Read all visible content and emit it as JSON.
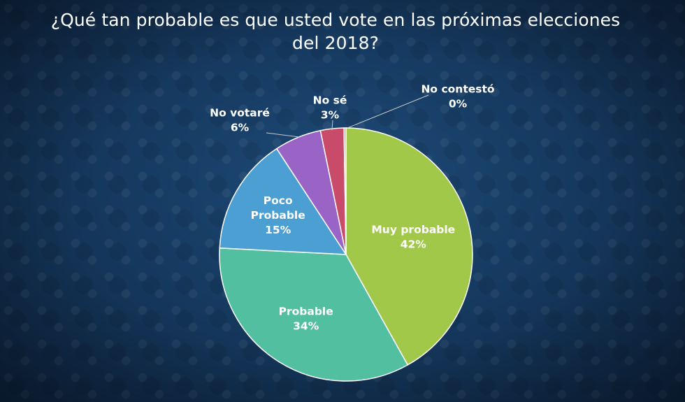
{
  "title_lines": [
    "¿Qué tan probable es que usted vote en las próximas elecciones",
    "del 2018?"
  ],
  "chart_data": {
    "type": "pie",
    "title": "¿Qué tan probable es que usted vote en las próximas elecciones del 2018?",
    "slices": [
      {
        "label_lines": [
          "Muy probable"
        ],
        "pct_label": "42%",
        "value": 42,
        "color": "#a2c84a",
        "label_color": "#ffffff"
      },
      {
        "label_lines": [
          "Probable"
        ],
        "pct_label": "34%",
        "value": 34,
        "color": "#52bfa0",
        "label_color": "#ffffff"
      },
      {
        "label_lines": [
          "Poco",
          "Probable"
        ],
        "pct_label": "15%",
        "value": 15,
        "color": "#4c9fd3",
        "label_color": "#ffffff"
      },
      {
        "label_lines": [
          "No votaré"
        ],
        "pct_label": "6%",
        "value": 6,
        "color": "#9a63c6",
        "label_color": "#ffffff"
      },
      {
        "label_lines": [
          "No sé"
        ],
        "pct_label": "3%",
        "value": 3,
        "color": "#c94b6a",
        "label_color": "#ffffff"
      },
      {
        "label_lines": [
          "No contestó"
        ],
        "pct_label": "0%",
        "value": 0.25,
        "color": "#d89a6a",
        "label_color": "#ffffff"
      }
    ]
  }
}
